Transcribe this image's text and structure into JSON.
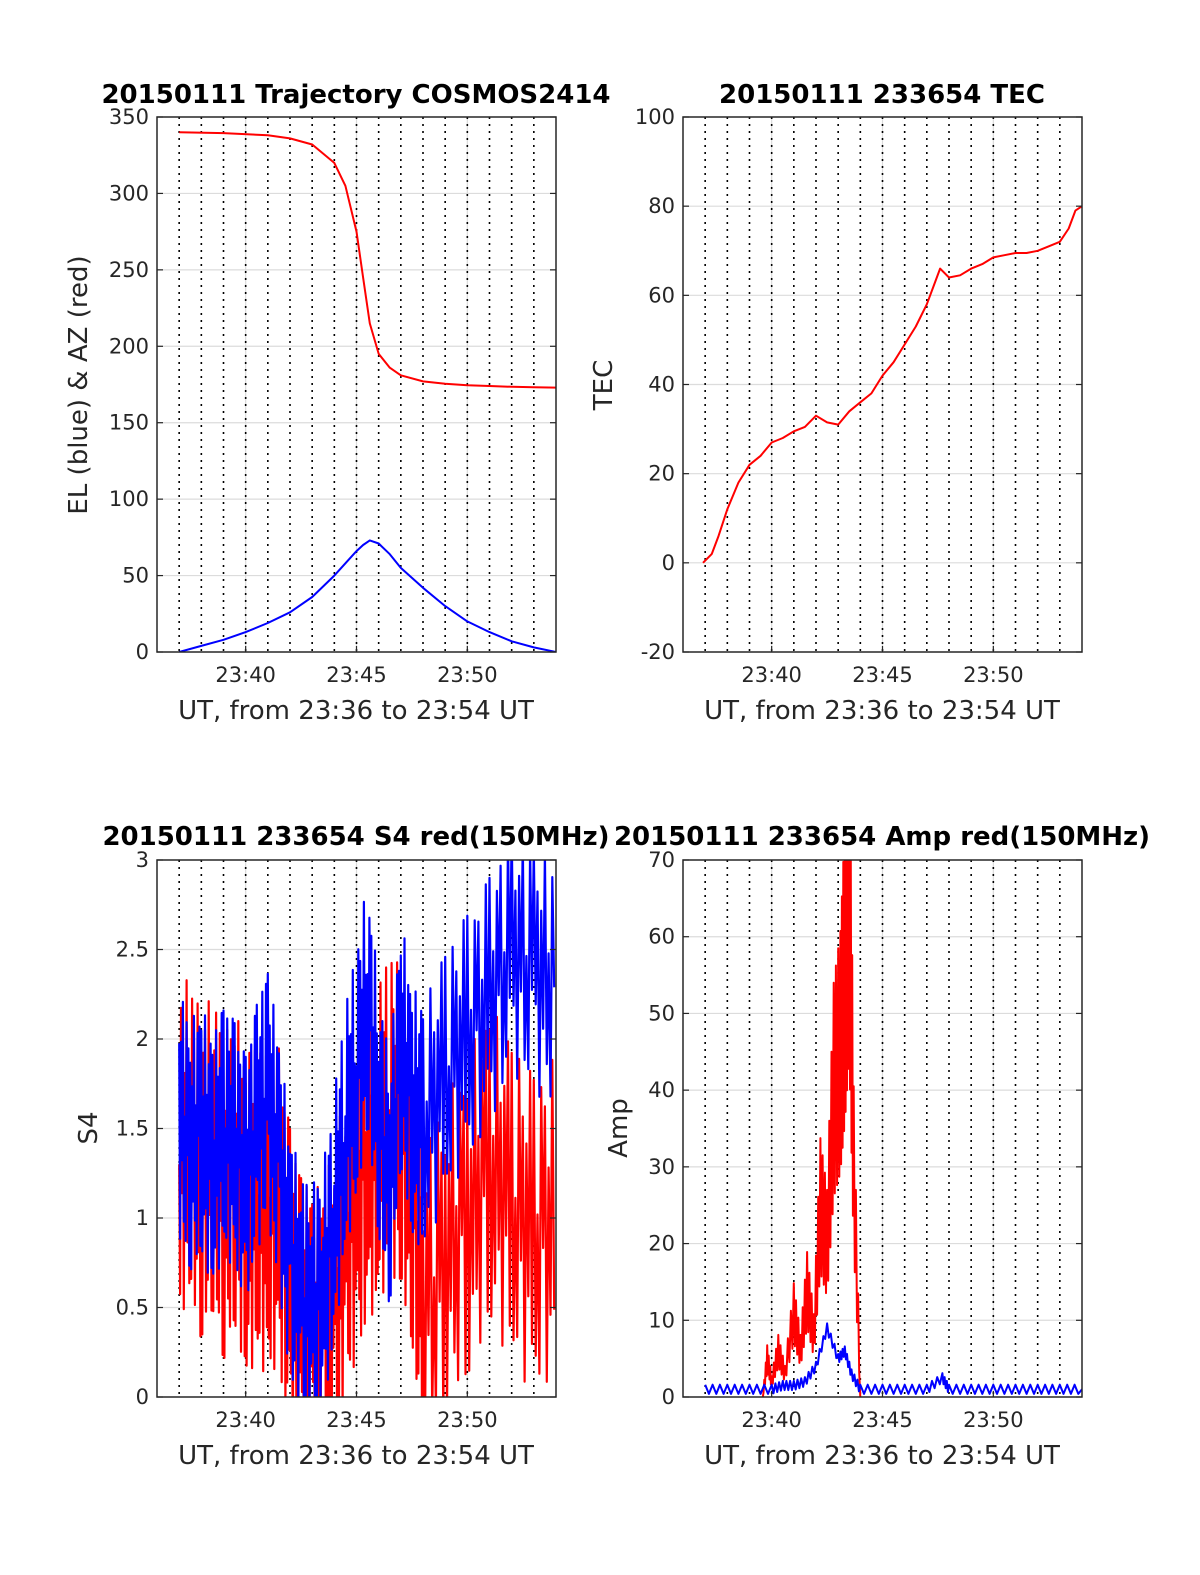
{
  "colors": {
    "red": "#ff0000",
    "blue": "#0000ff",
    "axis": "#262626",
    "grid": "#dcdcdc"
  },
  "chart_data": [
    {
      "type": "line",
      "title": "20150111 Trajectory COSMOS2414",
      "xlabel": "UT, from 23:36 to 23:54 UT",
      "ylabel": "EL (blue) & AZ (red)",
      "xlim": [
        "23:36",
        "23:54"
      ],
      "xticks": [
        "23:40",
        "23:45",
        "23:50"
      ],
      "ylim": [
        0,
        350
      ],
      "yticks": [
        0,
        50,
        100,
        150,
        200,
        250,
        300,
        350
      ],
      "grid": true,
      "series": [
        {
          "color": "red",
          "x": [
            "23:37",
            "23:39",
            "23:41",
            "23:42",
            "23:43",
            "23:44",
            "23:44.5",
            "23:45",
            "23:45.3",
            "23:45.6",
            "23:46",
            "23:46.5",
            "23:47",
            "23:48",
            "23:49",
            "23:50",
            "23:51",
            "23:52",
            "23:53",
            "23:54"
          ],
          "y": [
            340,
            339.5,
            338,
            336,
            332,
            320,
            305,
            275,
            245,
            215,
            195,
            186,
            181,
            177,
            175.5,
            174.5,
            174,
            173.5,
            173.2,
            173
          ]
        },
        {
          "color": "blue",
          "x": [
            "23:37",
            "23:38",
            "23:39",
            "23:40",
            "23:41",
            "23:42",
            "23:43",
            "23:44",
            "23:44.5",
            "23:45",
            "23:45.3",
            "23:45.6",
            "23:46",
            "23:46.5",
            "23:47",
            "23:48",
            "23:49",
            "23:50",
            "23:51",
            "23:52",
            "23:53",
            "23:54"
          ],
          "y": [
            0,
            4,
            8,
            13,
            19,
            26,
            36,
            50,
            58,
            66,
            70,
            73,
            71,
            64,
            55,
            42,
            30,
            20,
            13,
            7,
            3,
            0
          ]
        }
      ]
    },
    {
      "type": "line",
      "title": "20150111 233654 TEC",
      "xlabel": "UT, from 23:36 to 23:54 UT",
      "ylabel": "TEC",
      "xlim": [
        "23:36",
        "23:54"
      ],
      "xticks": [
        "23:40",
        "23:45",
        "23:50"
      ],
      "ylim": [
        -20,
        100
      ],
      "yticks": [
        -20,
        0,
        20,
        40,
        60,
        80,
        100
      ],
      "grid": true,
      "series": [
        {
          "color": "red",
          "x": [
            "23:36.9",
            "23:37.3",
            "23:37.6",
            "23:38",
            "23:38.5",
            "23:39",
            "23:39.5",
            "23:40",
            "23:40.5",
            "23:41",
            "23:41.5",
            "23:42",
            "23:42.5",
            "23:43",
            "23:43.5",
            "23:44",
            "23:44.5",
            "23:45",
            "23:45.5",
            "23:46",
            "23:46.5",
            "23:47",
            "23:47.3",
            "23:47.6",
            "23:48",
            "23:48.5",
            "23:49",
            "23:49.5",
            "23:50",
            "23:50.5",
            "23:51",
            "23:51.5",
            "23:52",
            "23:52.5",
            "23:53",
            "23:53.4",
            "23:53.7",
            "23:54"
          ],
          "y": [
            0,
            2,
            6,
            12,
            18,
            22,
            24,
            27,
            28,
            29.5,
            30.5,
            33,
            31.5,
            31,
            34,
            36,
            38,
            42,
            45,
            49,
            53,
            58,
            62,
            66,
            64,
            64.5,
            66,
            67,
            68.5,
            69,
            69.5,
            69.5,
            70,
            71,
            72,
            75,
            79,
            80
          ]
        }
      ]
    },
    {
      "type": "line",
      "title": "20150111 233654 S4 red(150MHz)",
      "xlabel": "UT, from 23:36 to 23:54 UT",
      "ylabel": "S4",
      "xlim": [
        "23:36",
        "23:54"
      ],
      "xticks": [
        "23:40",
        "23:45",
        "23:50"
      ],
      "ylim": [
        0,
        3
      ],
      "yticks": [
        0,
        0.5,
        1,
        1.5,
        2,
        2.5,
        3
      ],
      "grid": true,
      "series": [
        {
          "color": "red",
          "x": [
            "23:37",
            "23:37.5",
            "23:38",
            "23:38.5",
            "23:39",
            "23:39.5",
            "23:40",
            "23:40.5",
            "23:41",
            "23:41.5",
            "23:42",
            "23:42.5",
            "23:43",
            "23:43.5",
            "23:44",
            "23:44.5",
            "23:45",
            "23:45.5",
            "23:46",
            "23:46.5",
            "23:47",
            "23:47.5",
            "23:48",
            "23:49",
            "23:50",
            "23:51",
            "23:52",
            "23:53",
            "23:54"
          ],
          "y": [
            1.3,
            1.5,
            1.2,
            1.4,
            1.1,
            1.3,
            1.0,
            1.1,
            1.0,
            1.05,
            0.6,
            0.35,
            0.25,
            0.3,
            0.5,
            0.9,
            1.1,
            1.3,
            1.4,
            1.6,
            1.5,
            1.2,
            0.5,
            0.8,
            1.0,
            1.3,
            1.1,
            0.9,
            1.0
          ]
        },
        {
          "color": "blue",
          "x": [
            "23:37",
            "23:37.5",
            "23:38",
            "23:38.5",
            "23:39",
            "23:39.5",
            "23:40",
            "23:40.5",
            "23:41",
            "23:41.5",
            "23:42",
            "23:42.5",
            "23:43",
            "23:43.5",
            "23:44",
            "23:44.5",
            "23:45",
            "23:45.5",
            "23:46",
            "23:46.5",
            "23:47",
            "23:47.5",
            "23:48",
            "23:49",
            "23:50",
            "23:51",
            "23:52",
            "23:53",
            "23:54"
          ],
          "y": [
            1.6,
            1.4,
            1.5,
            1.3,
            1.5,
            1.4,
            1.2,
            1.5,
            1.7,
            1.3,
            0.8,
            0.55,
            0.5,
            0.6,
            1.0,
            1.5,
            1.8,
            2.2,
            1.6,
            1.2,
            2.0,
            1.6,
            1.5,
            1.8,
            2.0,
            2.2,
            2.5,
            2.4,
            2.3
          ]
        }
      ]
    },
    {
      "type": "line",
      "title": "20150111 233654 Amp red(150MHz)",
      "xlabel": "UT, from 23:36 to 23:54 UT",
      "ylabel": "Amp",
      "xlim": [
        "23:36",
        "23:54"
      ],
      "xticks": [
        "23:40",
        "23:45",
        "23:50"
      ],
      "ylim": [
        0,
        70
      ],
      "yticks": [
        0,
        10,
        20,
        30,
        40,
        50,
        60,
        70
      ],
      "grid": true,
      "series": [
        {
          "color": "red",
          "x": [
            "23:39.6",
            "23:39.8",
            "23:40",
            "23:40.3",
            "23:40.6",
            "23:41",
            "23:41.3",
            "23:41.6",
            "23:41.9",
            "23:42.2",
            "23:42.5",
            "23:42.8",
            "23:43.1",
            "23:43.3",
            "23:43.5",
            "23:43.7",
            "23:44"
          ],
          "y": [
            0,
            5,
            2,
            6,
            3,
            11,
            6,
            14,
            8,
            25,
            20,
            40,
            45,
            55,
            68,
            30,
            0
          ]
        },
        {
          "color": "blue",
          "x": [
            "23:37",
            "23:38",
            "23:39",
            "23:40",
            "23:40.5",
            "23:41",
            "23:41.5",
            "23:42",
            "23:42.5",
            "23:43",
            "23:43.3",
            "23:43.6",
            "23:44",
            "23:45",
            "23:46",
            "23:47",
            "23:47.7",
            "23:48",
            "23:49",
            "23:50",
            "23:51",
            "23:52",
            "23:53",
            "23:54"
          ],
          "y": [
            1,
            1,
            1,
            1,
            1.5,
            1.5,
            2,
            4,
            9,
            5,
            6,
            3,
            1,
            1,
            1,
            1,
            2.5,
            1,
            1,
            1,
            1,
            1,
            1,
            1
          ]
        }
      ]
    }
  ]
}
